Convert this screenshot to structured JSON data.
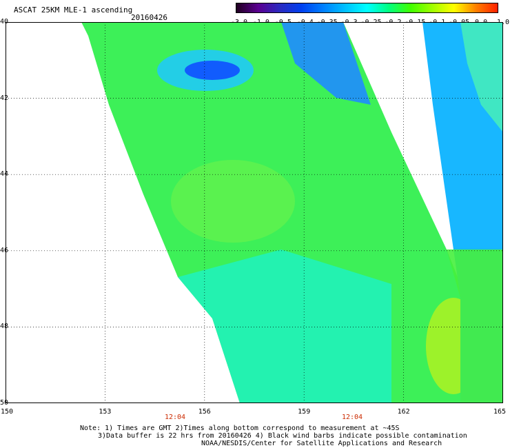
{
  "header": {
    "title": "ASCAT 25KM MLE-1 ascending",
    "date": "20160426"
  },
  "colorbar": {
    "labels": [
      "-3.0",
      "-1.0",
      "-0.5",
      "-0.4",
      "-0.35",
      "-0.3",
      "-0.25",
      "-0.2",
      "-0.15",
      "-0.1",
      "-0.05",
      "0.0",
      "1.0"
    ],
    "colors": [
      "#200020",
      "#5a0090",
      "#2a2ac0",
      "#0040f0",
      "#0080ff",
      "#00c0ff",
      "#00ffff",
      "#00ff80",
      "#40ff00",
      "#a0ff00",
      "#ffff00",
      "#ff8000",
      "#ff2000"
    ]
  },
  "map": {
    "lat_labels": [
      "40",
      "42",
      "44",
      "46",
      "48",
      "50"
    ],
    "lon_labels": [
      "150",
      "153",
      "156",
      "159",
      "162",
      "165"
    ],
    "time_labels": [
      "12:04",
      "12:04"
    ]
  },
  "footer": {
    "line1": "Note: 1) Times are GMT 2)Times along bottom correspond to measurement at ~45S",
    "line2": "3)Data buffer is 22 hrs from 20160426 4) Black wind barbs indicate possible contamination",
    "line3": "NOAA/NESDIS/Center for Satellite Applications and Research"
  }
}
